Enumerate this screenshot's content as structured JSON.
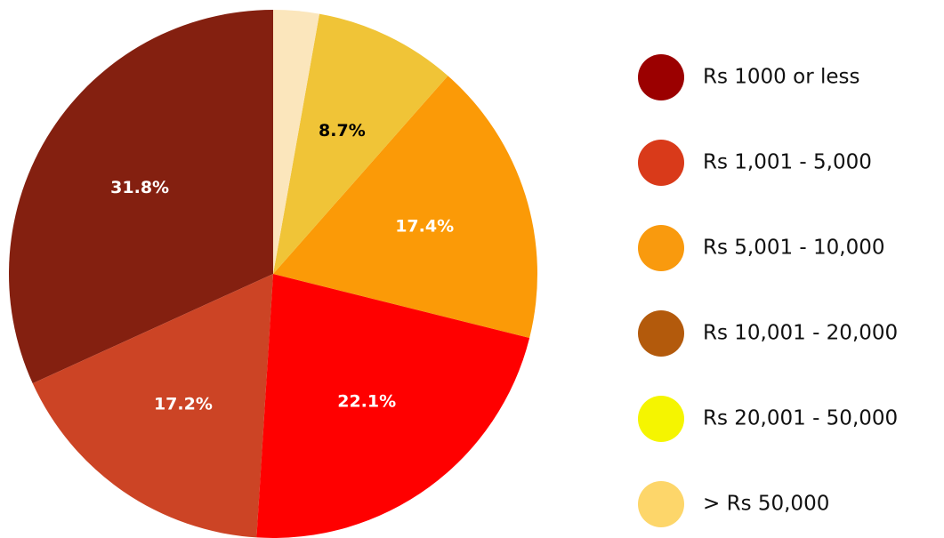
{
  "chart_data": {
    "type": "pie",
    "categories": [
      "Rs 1000 or less",
      "Rs 1,001 - 5,000",
      "Rs 5,001 - 10,000",
      "Rs 10,001 - 20,000",
      "Rs 20,001 - 50,000",
      "> Rs 50,000"
    ],
    "values": [
      31.8,
      17.2,
      22.1,
      17.4,
      8.7,
      2.8
    ],
    "value_labels": [
      "31.8%",
      "17.2%",
      "22.1%",
      "17.4%",
      "8.7%",
      null
    ],
    "colors": [
      "#842010",
      "#cc4425",
      "#ff0000",
      "#fb9a07",
      "#f0c437",
      "#fbe6bc"
    ],
    "legend_colors": [
      "#9b0000",
      "#d93a1a",
      "#f99a0e",
      "#b35a0c",
      "#f5f500",
      "#fdd66a"
    ],
    "legend": "right"
  }
}
